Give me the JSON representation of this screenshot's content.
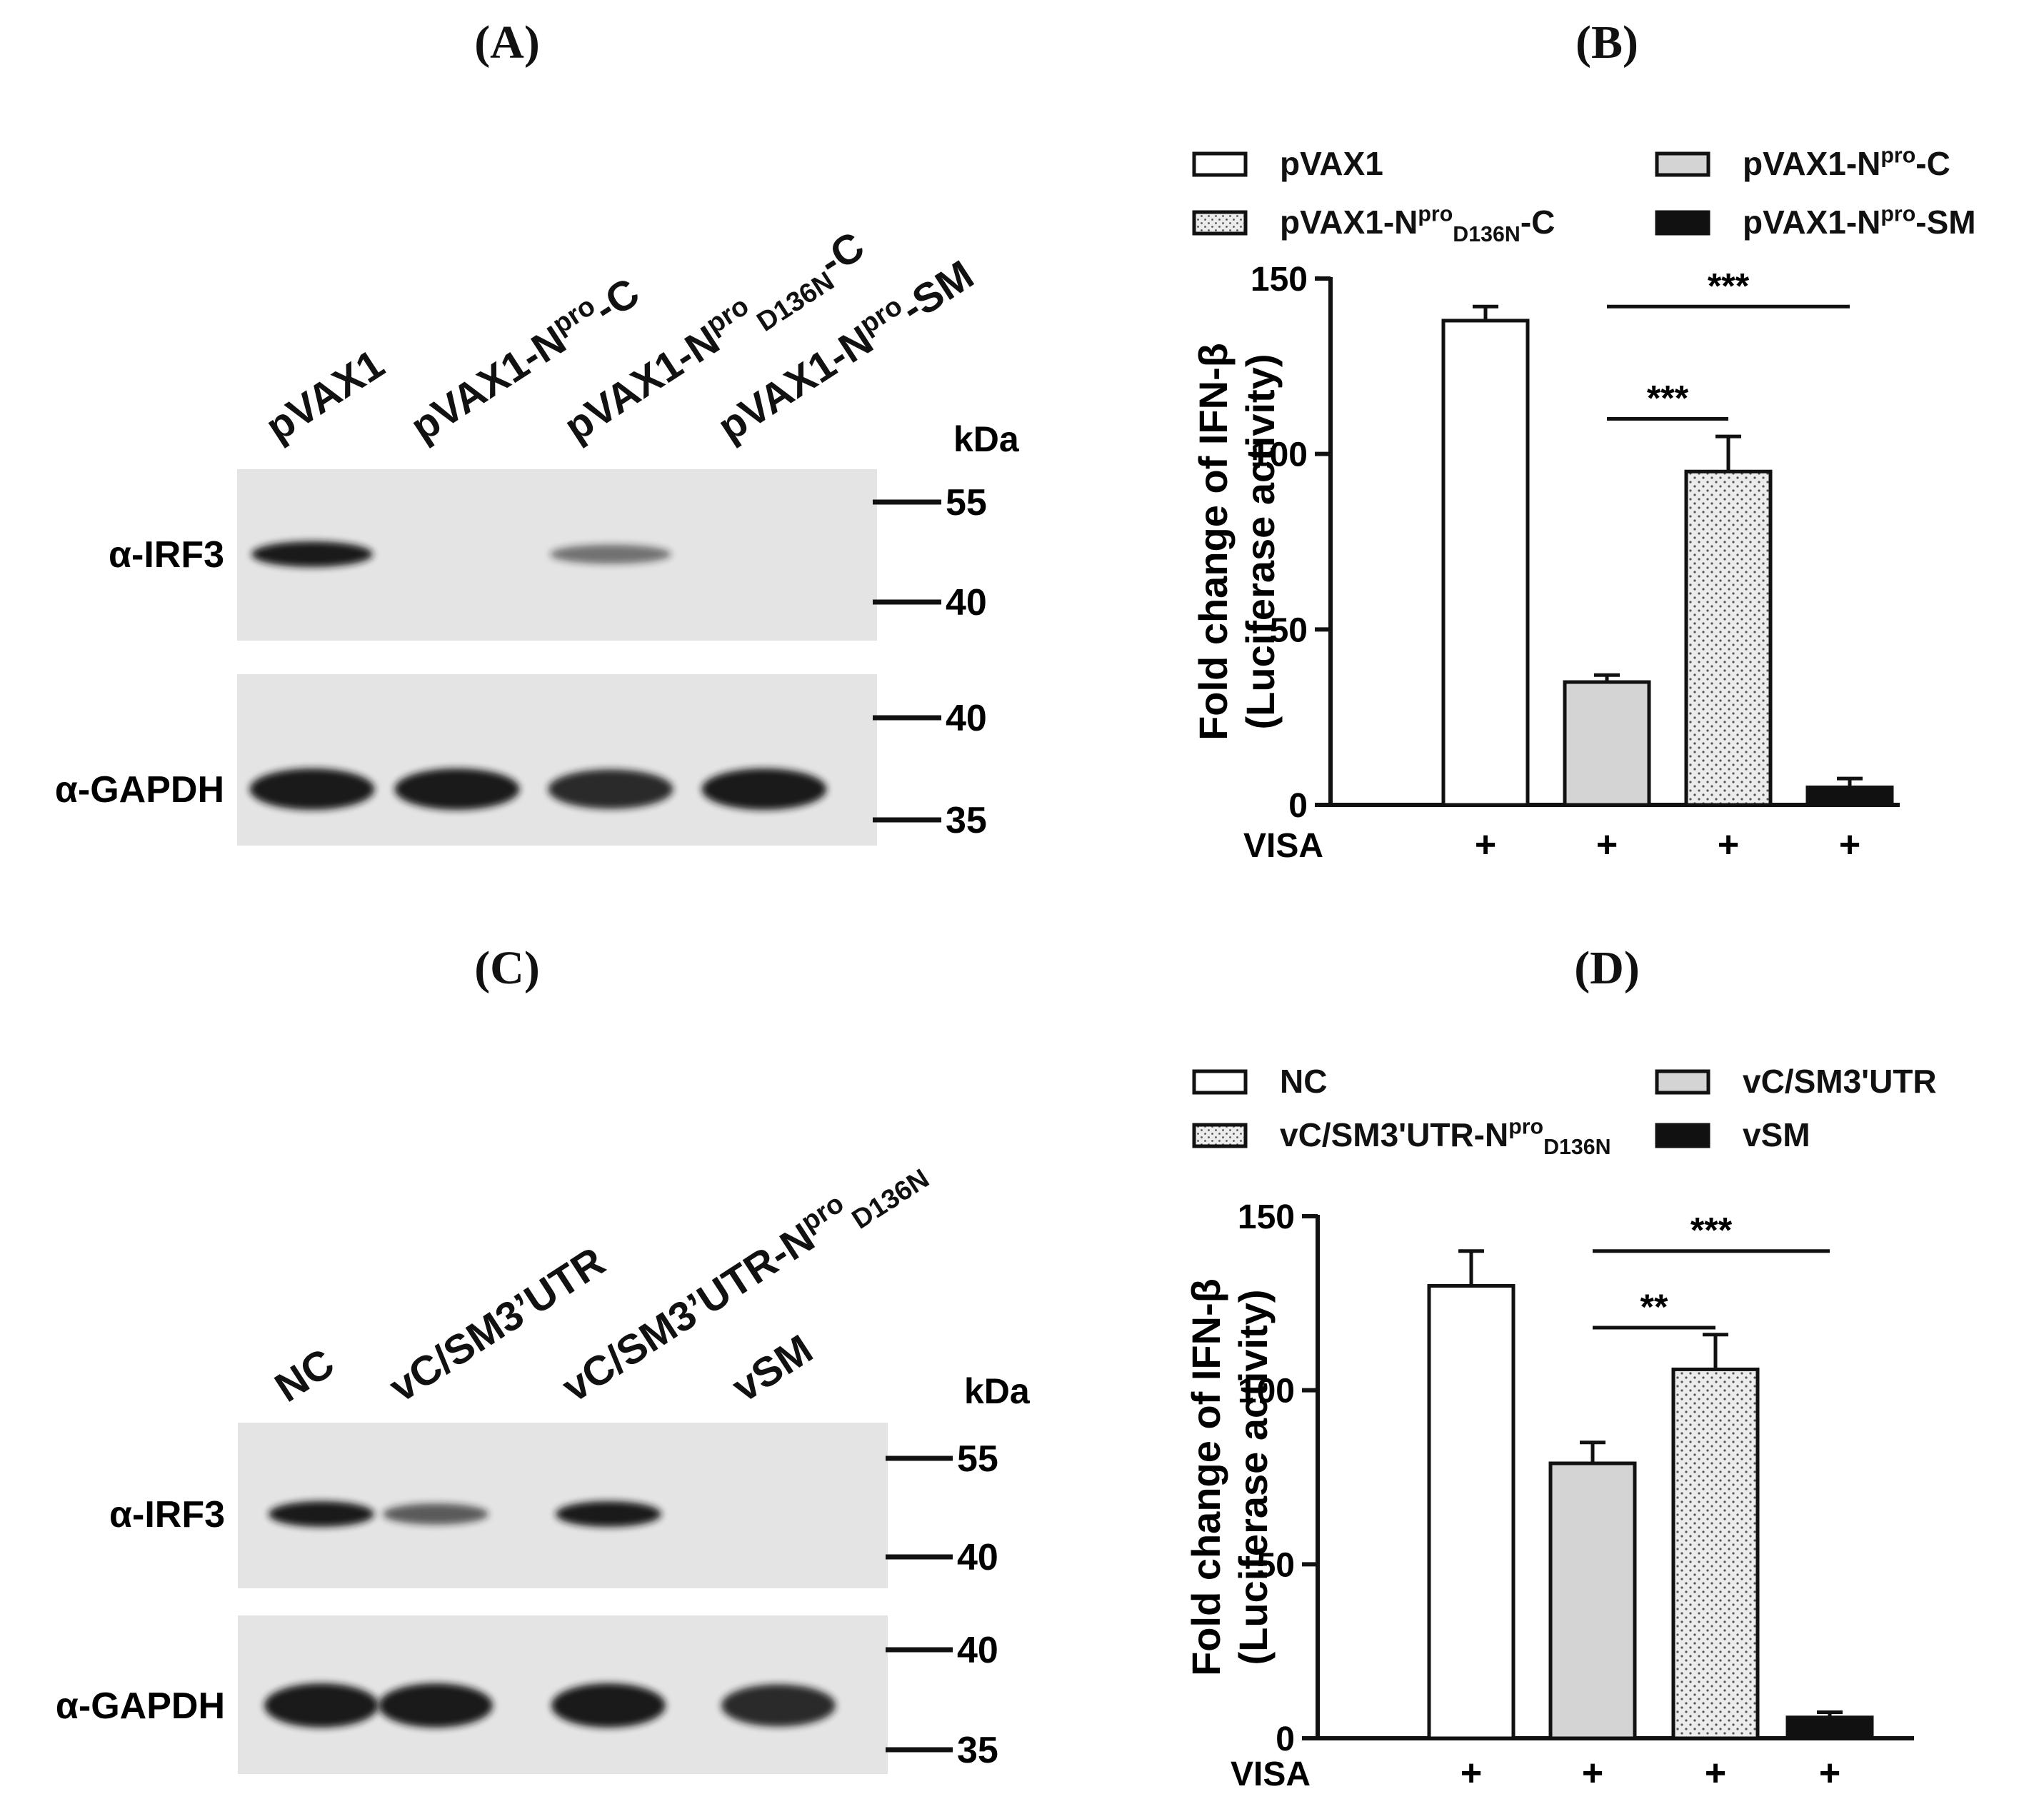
{
  "panels": {
    "A": {
      "letter": "(A)",
      "lanes": [
        {
          "pre": "pVAX1",
          "sup": "",
          "sub": "",
          "post": ""
        },
        {
          "pre": "pVAX1-N",
          "sup": "pro",
          "sub": "",
          "post": "-C"
        },
        {
          "pre": "pVAX1-N",
          "sup": "pro",
          "sub": "D136N",
          "post": "-C"
        },
        {
          "pre": "pVAX1-N",
          "sup": "pro",
          "sub": "",
          "post": "-SM"
        }
      ],
      "kda": "kDa",
      "blot1": {
        "label": "α-IRF3",
        "markers": [
          "55",
          "40"
        ],
        "band_intensity": [
          1.0,
          0,
          0.45,
          0
        ]
      },
      "blot2": {
        "label": "α-GAPDH",
        "markers": [
          "40",
          "35"
        ],
        "band_intensity": [
          1.0,
          1.0,
          0.9,
          1.0
        ]
      }
    },
    "B": {
      "letter": "(B)"
    },
    "C": {
      "letter": "(C)",
      "lanes": [
        {
          "pre": "NC",
          "sup": "",
          "sub": "",
          "post": ""
        },
        {
          "pre": "vC/SM3’UTR",
          "sup": "",
          "sub": "",
          "post": ""
        },
        {
          "pre": "vC/SM3’UTR-N",
          "sup": "pro",
          "sub": "D136N",
          "post": ""
        },
        {
          "pre": "vSM",
          "sup": "",
          "sub": "",
          "post": ""
        }
      ],
      "kda": "kDa",
      "blot1": {
        "label": "α-IRF3",
        "markers": [
          "55",
          "40"
        ],
        "band_intensity": [
          1.0,
          0.6,
          1.0,
          0
        ]
      },
      "blot2": {
        "label": "α-GAPDH",
        "markers": [
          "40",
          "35"
        ],
        "band_intensity": [
          1.0,
          1.0,
          1.0,
          0.9
        ]
      }
    },
    "D": {
      "letter": "(D)"
    }
  },
  "chart_data": [
    {
      "panel": "B",
      "type": "bar",
      "ylabel": "Fold change of IFN-β",
      "ylabel2": "(Luciferase activity)",
      "ylim": [
        0,
        150
      ],
      "yticks": [
        0,
        50,
        100,
        150
      ],
      "row_label": "VISA",
      "row_marks": [
        "+",
        "+",
        "+",
        "+"
      ],
      "legend": [
        {
          "pre": "pVAX1",
          "sup": "",
          "sub": "",
          "post": ""
        },
        {
          "pre": "pVAX1-N",
          "sup": "pro",
          "sub": "",
          "post": "-C"
        },
        {
          "pre": "pVAX1-N",
          "sup": "pro",
          "sub": "D136N",
          "post": "-C"
        },
        {
          "pre": "pVAX1-N",
          "sup": "pro",
          "sub": "",
          "post": "-SM"
        }
      ],
      "legend_placement": "top",
      "values": [
        138,
        35,
        95,
        5
      ],
      "errors": [
        4,
        2,
        10,
        2.5
      ],
      "fills": [
        "white",
        "lightgray",
        "dotted",
        "black"
      ],
      "significance": [
        {
          "from": 1,
          "to": 2,
          "text": "***",
          "level": 110
        },
        {
          "from": 1,
          "to": 3,
          "text": "***",
          "level": 142
        }
      ]
    },
    {
      "panel": "D",
      "type": "bar",
      "ylabel": "Fold change of IFN-β",
      "ylabel2": "(Luciferase activity)",
      "ylim": [
        0,
        150
      ],
      "yticks": [
        0,
        50,
        100,
        150
      ],
      "row_label": "VISA",
      "row_marks": [
        "+",
        "+",
        "+",
        "+"
      ],
      "legend": [
        {
          "pre": "NC",
          "sup": "",
          "sub": "",
          "post": ""
        },
        {
          "pre": "vC/SM3'UTR",
          "sup": "",
          "sub": "",
          "post": ""
        },
        {
          "pre": "vC/SM3'UTR-N",
          "sup": "pro",
          "sub": "D136N",
          "post": ""
        },
        {
          "pre": "vSM",
          "sup": "",
          "sub": "",
          "post": ""
        }
      ],
      "legend_placement": "top",
      "values": [
        130,
        79,
        106,
        6
      ],
      "errors": [
        10,
        6,
        10,
        1.5
      ],
      "fills": [
        "white",
        "lightgray",
        "dotted",
        "black"
      ],
      "significance": [
        {
          "from": 1,
          "to": 2,
          "text": "**",
          "level": 118
        },
        {
          "from": 1,
          "to": 3,
          "text": "***",
          "level": 140
        }
      ]
    }
  ]
}
